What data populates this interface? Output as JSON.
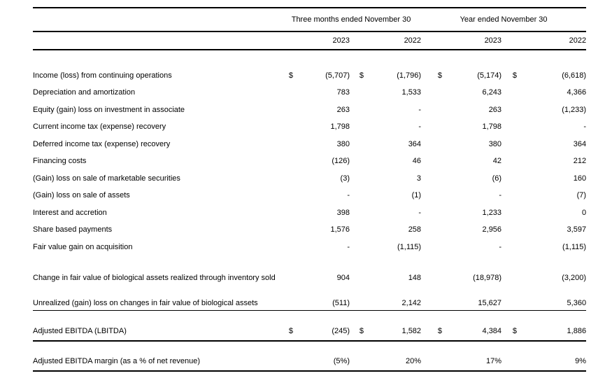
{
  "document": {
    "column_groups": {
      "three_months": "Three months ended November 30",
      "year": "Year ended November 30"
    },
    "years": [
      "2023",
      "2022",
      "2023",
      "2022"
    ],
    "currency_symbol": "$",
    "rows": [
      {
        "label": "Income (loss) from continuing operations",
        "bold": true,
        "cells": [
          {
            "d": "$",
            "v": "(5,707)"
          },
          {
            "d": "$",
            "v": "(1,796)"
          },
          {
            "d": "$",
            "v": "(5,174)"
          },
          {
            "d": "$",
            "v": "(6,618)"
          }
        ]
      },
      {
        "label": "Depreciation and amortization",
        "bold": false,
        "cells": [
          {
            "d": "",
            "v": "783"
          },
          {
            "d": "",
            "v": "1,533"
          },
          {
            "d": "",
            "v": "6,243"
          },
          {
            "d": "",
            "v": "4,366"
          }
        ]
      },
      {
        "label": "Equity (gain) loss on investment in associate",
        "bold": false,
        "cells": [
          {
            "d": "",
            "v": "263"
          },
          {
            "d": "",
            "v": "-"
          },
          {
            "d": "",
            "v": "263"
          },
          {
            "d": "",
            "v": "(1,233)"
          }
        ]
      },
      {
        "label": "Current income tax (expense) recovery",
        "bold": false,
        "cells": [
          {
            "d": "",
            "v": "1,798"
          },
          {
            "d": "",
            "v": "-"
          },
          {
            "d": "",
            "v": "1,798"
          },
          {
            "d": "",
            "v": "-"
          }
        ]
      },
      {
        "label": "Deferred income tax (expense) recovery",
        "bold": false,
        "cells": [
          {
            "d": "",
            "v": "380"
          },
          {
            "d": "",
            "v": "364"
          },
          {
            "d": "",
            "v": "380"
          },
          {
            "d": "",
            "v": "364"
          }
        ]
      },
      {
        "label": "Financing costs",
        "bold": false,
        "cells": [
          {
            "d": "",
            "v": "(126)"
          },
          {
            "d": "",
            "v": "46"
          },
          {
            "d": "",
            "v": "42"
          },
          {
            "d": "",
            "v": "212"
          }
        ]
      },
      {
        "label": "(Gain) loss on sale of marketable securities",
        "bold": false,
        "cells": [
          {
            "d": "",
            "v": "(3)"
          },
          {
            "d": "",
            "v": "3"
          },
          {
            "d": "",
            "v": "(6)"
          },
          {
            "d": "",
            "v": "160"
          }
        ]
      },
      {
        "label": "(Gain) loss on sale of assets",
        "bold": false,
        "cells": [
          {
            "d": "",
            "v": "-"
          },
          {
            "d": "",
            "v": "(1)"
          },
          {
            "d": "",
            "v": "-"
          },
          {
            "d": "",
            "v": "(7)"
          }
        ]
      },
      {
        "label": "Interest and accretion",
        "bold": false,
        "cells": [
          {
            "d": "",
            "v": "398"
          },
          {
            "d": "",
            "v": "-"
          },
          {
            "d": "",
            "v": "1,233"
          },
          {
            "d": "",
            "v": "0"
          }
        ]
      },
      {
        "label": "Share based payments",
        "bold": false,
        "cells": [
          {
            "d": "",
            "v": "1,576"
          },
          {
            "d": "",
            "v": "258"
          },
          {
            "d": "",
            "v": "2,956"
          },
          {
            "d": "",
            "v": "3,597"
          }
        ]
      },
      {
        "label": "Fair value gain on acquisition",
        "bold": false,
        "cells": [
          {
            "d": "",
            "v": "-"
          },
          {
            "d": "",
            "v": "(1,115)"
          },
          {
            "d": "",
            "v": "-"
          },
          {
            "d": "",
            "v": "(1,115)"
          }
        ]
      },
      {
        "label": "Change in fair value of biological assets realized through inventory sold",
        "bold": false,
        "cells": [
          {
            "d": "",
            "v": "904"
          },
          {
            "d": "",
            "v": "148"
          },
          {
            "d": "",
            "v": "(18,978)"
          },
          {
            "d": "",
            "v": "(3,200)"
          }
        ]
      },
      {
        "label": "Unrealized (gain) loss on changes in fair value of biological assets",
        "bold": false,
        "cells": [
          {
            "d": "",
            "v": "(511)"
          },
          {
            "d": "",
            "v": "2,142"
          },
          {
            "d": "",
            "v": "15,627"
          },
          {
            "d": "",
            "v": "5,360"
          }
        ]
      },
      {
        "label": "Adjusted EBITDA (LBITDA)",
        "bold": true,
        "cells": [
          {
            "d": "$",
            "v": "(245)"
          },
          {
            "d": "$",
            "v": "1,582"
          },
          {
            "d": "$",
            "v": "4,384"
          },
          {
            "d": "$",
            "v": "1,886"
          }
        ]
      },
      {
        "label": "Adjusted EBITDA margin (as a % of net revenue)",
        "bold": true,
        "cells": [
          {
            "d": "",
            "v": "(5%)"
          },
          {
            "d": "",
            "v": "20%"
          },
          {
            "d": "",
            "v": "17%"
          },
          {
            "d": "",
            "v": "9%"
          }
        ]
      }
    ]
  }
}
